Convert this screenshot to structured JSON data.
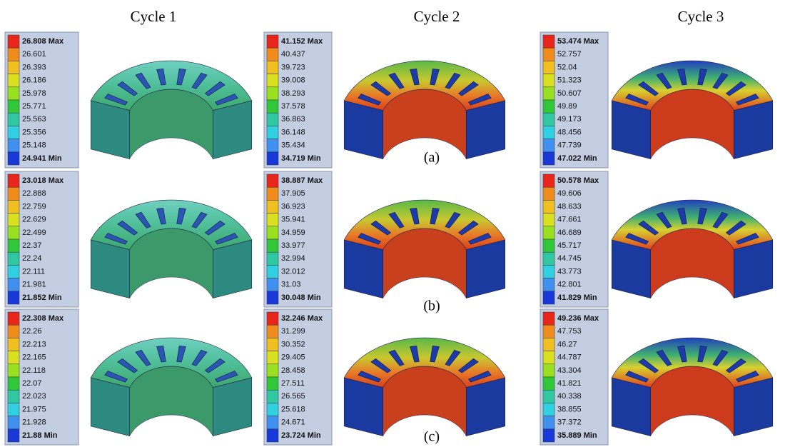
{
  "columns": [
    "Cycle 1",
    "Cycle 2",
    "Cycle 3"
  ],
  "rows": [
    {
      "label": "(a)",
      "panels": [
        {
          "legend": [
            "26.808 Max",
            "26.601",
            "26.393",
            "26.186",
            "25.978",
            "25.771",
            "25.563",
            "25.356",
            "25.148",
            "24.941 Min"
          ]
        },
        {
          "legend": [
            "41.152 Max",
            "40.437",
            "39.723",
            "39.008",
            "38.293",
            "37.578",
            "36.863",
            "36.148",
            "35.434",
            "34.719 Min"
          ]
        },
        {
          "legend": [
            "53.474 Max",
            "52.757",
            "52.04",
            "51.323",
            "50.607",
            "49.89",
            "49.173",
            "48.456",
            "47.739",
            "47.022 Min"
          ]
        }
      ]
    },
    {
      "label": "(b)",
      "panels": [
        {
          "legend": [
            "23.018 Max",
            "22.888",
            "22.759",
            "22.629",
            "22.499",
            "22.37",
            "22.24",
            "22.111",
            "21.981",
            "21.852 Min"
          ]
        },
        {
          "legend": [
            "38.887 Max",
            "37.905",
            "36.923",
            "35.941",
            "34.959",
            "33.977",
            "32.994",
            "32.012",
            "31.03",
            "30.048 Min"
          ]
        },
        {
          "legend": [
            "50.578 Max",
            "49.606",
            "48.633",
            "47.661",
            "46.689",
            "45.717",
            "44.745",
            "43.773",
            "42.801",
            "41.829 Min"
          ]
        }
      ]
    },
    {
      "label": "(c)",
      "panels": [
        {
          "legend": [
            "22.308 Max",
            "22.26",
            "22.213",
            "22.165",
            "22.118",
            "22.07",
            "22.023",
            "21.975",
            "21.928",
            "21.88 Min"
          ]
        },
        {
          "legend": [
            "32.246 Max",
            "31.299",
            "30.352",
            "29.405",
            "28.458",
            "27.511",
            "26.565",
            "25.618",
            "24.671",
            "23.724 Min"
          ]
        },
        {
          "legend": [
            "49.236 Max",
            "47.753",
            "46.27",
            "44.787",
            "43.304",
            "41.821",
            "40.338",
            "38.855",
            "37.372",
            "35.889 Min"
          ]
        }
      ]
    }
  ]
}
